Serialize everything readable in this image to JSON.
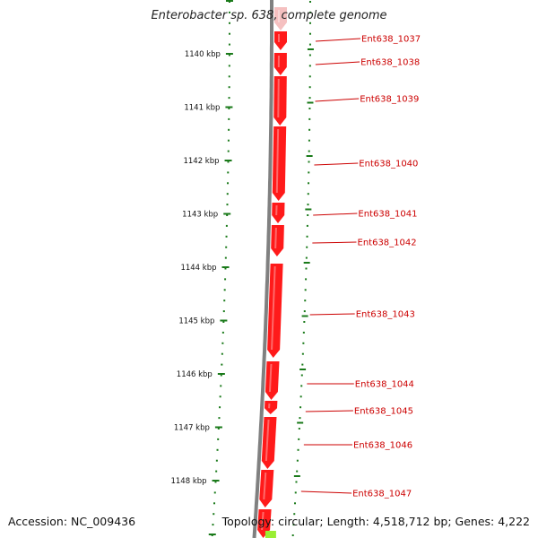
{
  "title": "Enterobacter sp. 638, complete genome",
  "footer": {
    "accession": "Accession: NC_009436",
    "summary": "Topology: circular; Length: 4,518,712 bp; Genes: 4,222"
  },
  "colors": {
    "gene": "#ff1a1a",
    "gene_highlight": "#ffffff",
    "backbone": "#808080",
    "ticks": "#1a7a1a",
    "label": "#cc0000",
    "faded_gene": "#f5c0c0",
    "next_gene": "#99ee33"
  },
  "scale_labels": [
    "1140 kbp",
    "1141 kbp",
    "1142 kbp",
    "1143 kbp",
    "1144 kbp",
    "1145 kbp",
    "1146 kbp",
    "1147 kbp",
    "1148 kbp"
  ],
  "genes": [
    {
      "label": "Ent638_1037"
    },
    {
      "label": "Ent638_1038"
    },
    {
      "label": "Ent638_1039"
    },
    {
      "label": "Ent638_1040"
    },
    {
      "label": "Ent638_1041"
    },
    {
      "label": "Ent638_1042"
    },
    {
      "label": ""
    },
    {
      "label": "Ent638_1043"
    },
    {
      "label": "Ent638_1044"
    },
    {
      "label": "Ent638_1045"
    },
    {
      "label": "Ent638_1046"
    },
    {
      "label": "Ent638_1047"
    }
  ]
}
